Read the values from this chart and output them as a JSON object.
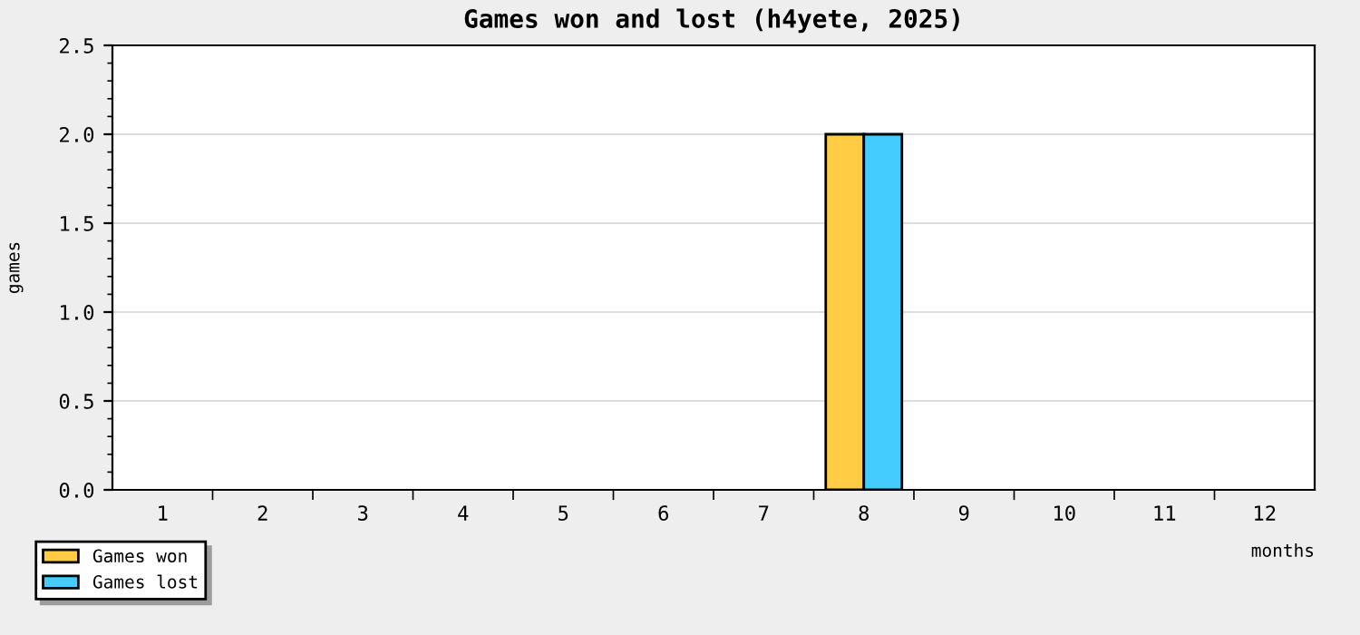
{
  "chart_data": {
    "type": "bar",
    "title": "Games won and lost (h4yete, 2025)",
    "xlabel": "months",
    "ylabel": "games",
    "categories": [
      "1",
      "2",
      "3",
      "4",
      "5",
      "6",
      "7",
      "8",
      "9",
      "10",
      "11",
      "12"
    ],
    "series": [
      {
        "name": "Games won",
        "color": "#ffcc44",
        "values": [
          0,
          0,
          0,
          0,
          0,
          0,
          0,
          2,
          0,
          0,
          0,
          0
        ]
      },
      {
        "name": "Games lost",
        "color": "#44ccff",
        "values": [
          0,
          0,
          0,
          0,
          0,
          0,
          0,
          2,
          0,
          0,
          0,
          0
        ]
      }
    ],
    "ylim": [
      0,
      2.5
    ],
    "yticks": [
      {
        "value": 0,
        "label": "0.0"
      },
      {
        "value": 0.5,
        "label": "0.5"
      },
      {
        "value": 1,
        "label": "1.0"
      },
      {
        "value": 1.5,
        "label": "1.5"
      },
      {
        "value": 2,
        "label": "2.0"
      },
      {
        "value": 2.5,
        "label": "2.5"
      }
    ],
    "grid": "y",
    "legend": "bottom left"
  }
}
